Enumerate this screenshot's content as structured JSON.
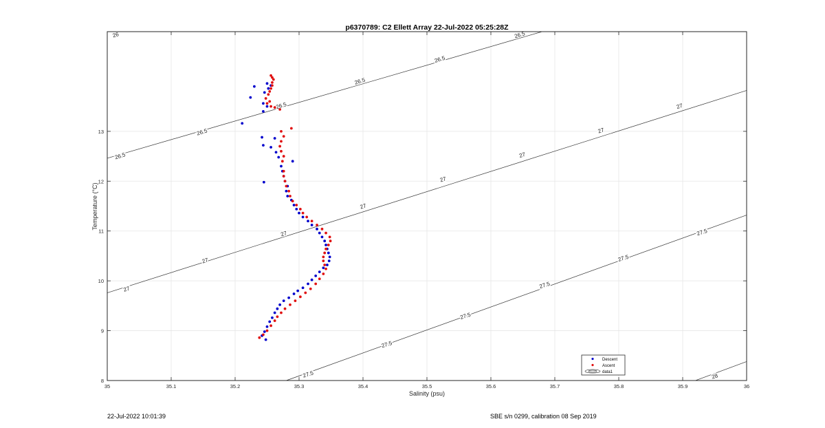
{
  "chart_data": {
    "type": "scatter",
    "title": "p6370789: C2 Ellett Array 22-Jul-2022 05:25:28Z",
    "xlabel": "Salinity (psu)",
    "ylabel": "Temperature (°C)",
    "xlim": [
      35,
      36
    ],
    "ylim": [
      8,
      15
    ],
    "xticks": [
      "35",
      "35.1",
      "35.2",
      "35.3",
      "35.4",
      "35.5",
      "35.6",
      "35.7",
      "35.8",
      "35.9",
      "36"
    ],
    "yticks": [
      "8",
      "9",
      "10",
      "11",
      "12",
      "13"
    ],
    "grid": true,
    "legend": {
      "placement": "bottom-right",
      "entries": [
        "Descent",
        "Ascent",
        "data1"
      ]
    },
    "colors": {
      "descent": "#0000cc",
      "ascent": "#e01010",
      "contour": "#333333",
      "grid": "#e6e6e6",
      "axis": "#262626"
    },
    "series": [
      {
        "name": "Descent",
        "points": [
          [
            35.248,
            8.82
          ],
          [
            35.242,
            8.9
          ],
          [
            35.246,
            8.98
          ],
          [
            35.25,
            9.08
          ],
          [
            35.254,
            9.18
          ],
          [
            35.258,
            9.26
          ],
          [
            35.262,
            9.36
          ],
          [
            35.266,
            9.44
          ],
          [
            35.27,
            9.52
          ],
          [
            35.276,
            9.6
          ],
          [
            35.284,
            9.66
          ],
          [
            35.292,
            9.74
          ],
          [
            35.298,
            9.8
          ],
          [
            35.306,
            9.86
          ],
          [
            35.314,
            9.94
          ],
          [
            35.32,
            10.02
          ],
          [
            35.326,
            10.1
          ],
          [
            35.332,
            10.18
          ],
          [
            35.338,
            10.26
          ],
          [
            35.344,
            10.32
          ],
          [
            35.347,
            10.4
          ],
          [
            35.348,
            10.48
          ],
          [
            35.346,
            10.56
          ],
          [
            35.344,
            10.64
          ],
          [
            35.342,
            10.72
          ],
          [
            35.34,
            10.8
          ],
          [
            35.336,
            10.88
          ],
          [
            35.332,
            10.96
          ],
          [
            35.328,
            11.04
          ],
          [
            35.32,
            11.12
          ],
          [
            35.314,
            11.2
          ],
          [
            35.306,
            11.28
          ],
          [
            35.3,
            11.36
          ],
          [
            35.296,
            11.44
          ],
          [
            35.292,
            11.52
          ],
          [
            35.288,
            11.62
          ],
          [
            35.282,
            11.7
          ],
          [
            35.28,
            11.8
          ],
          [
            35.282,
            11.9
          ],
          [
            35.278,
            12.0
          ],
          [
            35.276,
            12.1
          ],
          [
            35.274,
            12.2
          ],
          [
            35.272,
            12.3
          ],
          [
            35.29,
            12.4
          ],
          [
            35.268,
            12.48
          ],
          [
            35.264,
            12.58
          ],
          [
            35.256,
            12.68
          ],
          [
            35.244,
            12.72
          ],
          [
            35.242,
            12.88
          ],
          [
            35.262,
            12.86
          ],
          [
            35.245,
            11.98
          ],
          [
            35.211,
            13.16
          ],
          [
            35.244,
            13.4
          ],
          [
            35.25,
            13.5
          ],
          [
            35.244,
            13.56
          ],
          [
            35.224,
            13.68
          ],
          [
            35.246,
            13.78
          ],
          [
            35.23,
            13.9
          ],
          [
            35.252,
            13.86
          ],
          [
            35.256,
            13.92
          ],
          [
            35.25,
            13.96
          ]
        ]
      },
      {
        "name": "Ascent",
        "points": [
          [
            35.238,
            8.86
          ],
          [
            35.244,
            8.92
          ],
          [
            35.25,
            9.0
          ],
          [
            35.256,
            9.1
          ],
          [
            35.262,
            9.2
          ],
          [
            35.266,
            9.28
          ],
          [
            35.272,
            9.36
          ],
          [
            35.278,
            9.44
          ],
          [
            35.286,
            9.52
          ],
          [
            35.294,
            9.6
          ],
          [
            35.302,
            9.68
          ],
          [
            35.31,
            9.76
          ],
          [
            35.318,
            9.84
          ],
          [
            35.326,
            9.94
          ],
          [
            35.332,
            10.04
          ],
          [
            35.338,
            10.14
          ],
          [
            35.342,
            10.24
          ],
          [
            35.34,
            10.32
          ],
          [
            35.338,
            10.4
          ],
          [
            35.338,
            10.48
          ],
          [
            35.34,
            10.56
          ],
          [
            35.342,
            10.64
          ],
          [
            35.346,
            10.72
          ],
          [
            35.349,
            10.8
          ],
          [
            35.348,
            10.88
          ],
          [
            35.342,
            10.96
          ],
          [
            35.336,
            11.04
          ],
          [
            35.328,
            11.12
          ],
          [
            35.32,
            11.2
          ],
          [
            35.312,
            11.28
          ],
          [
            35.306,
            11.36
          ],
          [
            35.302,
            11.44
          ],
          [
            35.296,
            11.52
          ],
          [
            35.29,
            11.6
          ],
          [
            35.286,
            11.7
          ],
          [
            35.284,
            11.8
          ],
          [
            35.28,
            11.9
          ],
          [
            35.278,
            12.0
          ],
          [
            35.276,
            12.1
          ],
          [
            35.276,
            12.2
          ],
          [
            35.274,
            12.4
          ],
          [
            35.276,
            12.5
          ],
          [
            35.272,
            12.6
          ],
          [
            35.27,
            12.7
          ],
          [
            35.272,
            12.8
          ],
          [
            35.276,
            12.9
          ],
          [
            35.272,
            13.0
          ],
          [
            35.288,
            13.06
          ],
          [
            35.27,
            13.44
          ],
          [
            35.262,
            13.48
          ],
          [
            35.256,
            13.5
          ],
          [
            35.25,
            13.56
          ],
          [
            35.254,
            13.6
          ],
          [
            35.248,
            13.66
          ],
          [
            35.252,
            13.74
          ],
          [
            35.254,
            13.8
          ],
          [
            35.256,
            13.86
          ],
          [
            35.258,
            13.92
          ],
          [
            35.258,
            13.98
          ],
          [
            35.26,
            14.04
          ],
          [
            35.258,
            14.08
          ],
          [
            35.256,
            14.12
          ]
        ]
      }
    ],
    "contour_labels": [
      {
        "text": "26",
        "x": 35.013,
        "y": 14.94
      },
      {
        "text": "26.5",
        "x": 35.02,
        "y": 12.51
      },
      {
        "text": "26.5",
        "x": 35.148,
        "y": 12.99
      },
      {
        "text": "26.5",
        "x": 35.272,
        "y": 13.52
      },
      {
        "text": "26.5",
        "x": 35.395,
        "y": 14.01
      },
      {
        "text": "26.5",
        "x": 35.52,
        "y": 14.45
      },
      {
        "text": "26.5",
        "x": 35.645,
        "y": 14.94
      },
      {
        "text": "27",
        "x": 35.03,
        "y": 9.84
      },
      {
        "text": "27",
        "x": 35.153,
        "y": 10.41
      },
      {
        "text": "27",
        "x": 35.276,
        "y": 10.95
      },
      {
        "text": "27",
        "x": 35.4,
        "y": 11.5
      },
      {
        "text": "27",
        "x": 35.525,
        "y": 12.04
      },
      {
        "text": "27",
        "x": 35.649,
        "y": 12.53
      },
      {
        "text": "27",
        "x": 35.772,
        "y": 13.02
      },
      {
        "text": "27",
        "x": 35.895,
        "y": 13.51
      },
      {
        "text": "27.5",
        "x": 35.314,
        "y": 8.13
      },
      {
        "text": "27.5",
        "x": 35.437,
        "y": 8.73
      },
      {
        "text": "27.5",
        "x": 35.56,
        "y": 9.3
      },
      {
        "text": "27.5",
        "x": 35.684,
        "y": 9.92
      },
      {
        "text": "27.5",
        "x": 35.807,
        "y": 10.46
      },
      {
        "text": "27.5",
        "x": 35.93,
        "y": 10.98
      },
      {
        "text": "28",
        "x": 35.95,
        "y": 8.09
      }
    ]
  },
  "footer": {
    "timestamp": "22-Jul-2022 10:01:39",
    "calibration": "SBE s/n 0299, calibration 08 Sep 2019"
  }
}
